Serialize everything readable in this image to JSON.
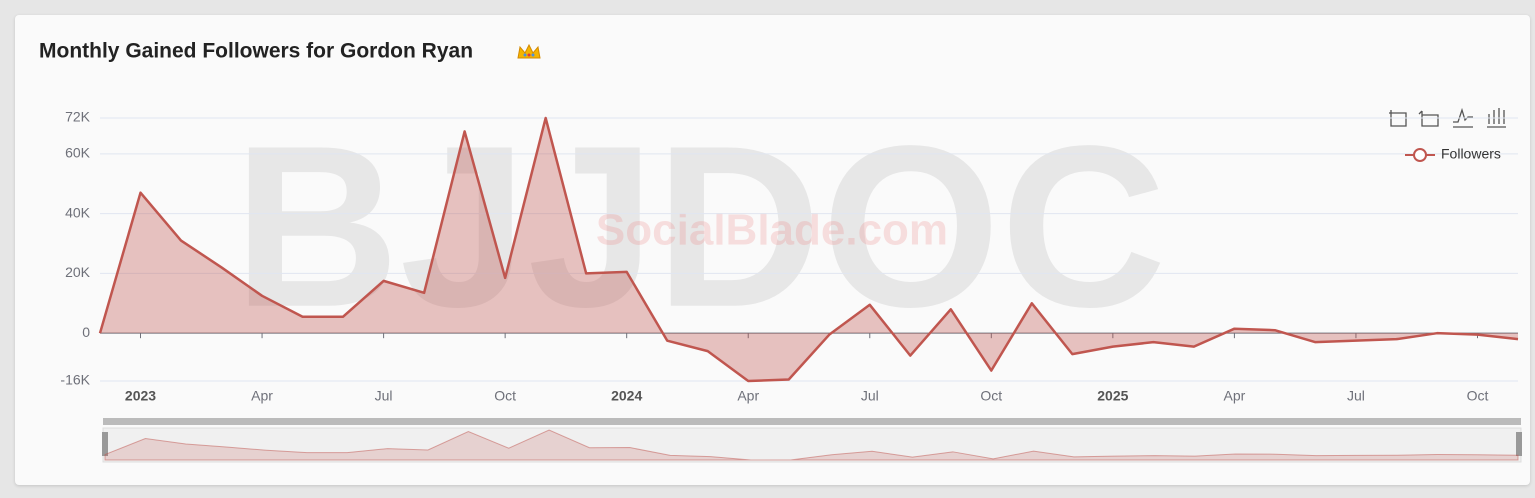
{
  "chart_data": {
    "type": "area",
    "title": "Monthly Gained Followers for Gordon Ryan",
    "watermark": "SocialBlade.com",
    "watermark_logo": "BJJDOC",
    "categories": [
      null,
      "2023",
      null,
      null,
      "Apr",
      null,
      null,
      "Jul",
      null,
      null,
      "Oct",
      null,
      null,
      "2024",
      null,
      null,
      "Apr",
      null,
      null,
      "Jul",
      null,
      null,
      "Oct",
      null,
      null,
      "2025",
      null,
      null,
      "Apr",
      null,
      null,
      "Jul",
      null,
      null,
      "Oct",
      null
    ],
    "series": [
      {
        "name": "Followers",
        "color": "#c0564f",
        "values": [
          0,
          47000,
          31000,
          22000,
          12500,
          5500,
          5500,
          17500,
          13500,
          67500,
          18500,
          72000,
          20000,
          20500,
          -2500,
          -6000,
          -16000,
          -15500,
          -500,
          9500,
          -7500,
          8000,
          -12500,
          10000,
          -7000,
          -4500,
          -3000,
          -4500,
          1500,
          1000,
          -3000,
          -2500,
          -2000,
          0,
          -500,
          -2000
        ]
      }
    ],
    "ylim": [
      -16000,
      72000
    ],
    "yticks": [
      {
        "value": -16000,
        "label": "-16K"
      },
      0,
      {
        "value": 20000,
        "label": "20K"
      },
      {
        "value": 40000,
        "label": "40K"
      },
      {
        "value": 60000,
        "label": "60K"
      },
      {
        "value": 72000,
        "label": "72K"
      }
    ],
    "grid": true,
    "legend_position": "top-right"
  }
}
